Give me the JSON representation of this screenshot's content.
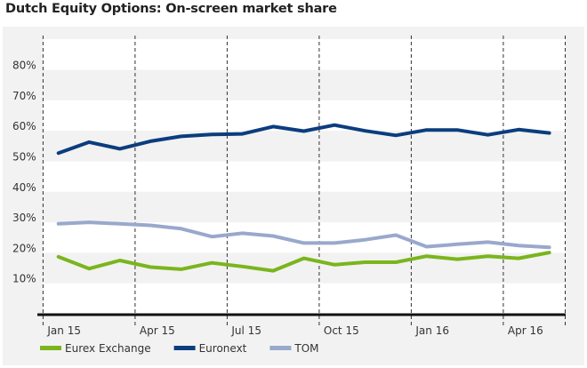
{
  "chart_data": {
    "type": "line",
    "title": "Dutch Equity Options: On-screen market share",
    "xlabel": "",
    "ylabel": "",
    "ylim": [
      0,
      90
    ],
    "yticks": [
      10,
      20,
      30,
      40,
      50,
      60,
      70,
      80
    ],
    "ytick_labels": [
      "10%",
      "20%",
      "30%",
      "40%",
      "50%",
      "60%",
      "70%",
      "80%"
    ],
    "x": [
      "Jan 15",
      "Feb 15",
      "Mar 15",
      "Apr 15",
      "May 15",
      "Jun 15",
      "Jul 15",
      "Aug 15",
      "Sep 15",
      "Oct 15",
      "Nov 15",
      "Dec 15",
      "Jan 16",
      "Feb 16",
      "Mar 16",
      "Apr 16",
      "May 16"
    ],
    "xtick_labels": [
      "Jan 15",
      "Apr 15",
      "Jul 15",
      "Oct 15",
      "Jan 16",
      "Apr 16"
    ],
    "grid": "alternating horizontal bands, dashed vertical quarter lines",
    "legend_position": "bottom-left",
    "series": [
      {
        "name": "Eurex Exchange",
        "color": "#7ab51d",
        "values": [
          18.7,
          14.8,
          17.5,
          15.3,
          14.6,
          16.7,
          15.5,
          14.1,
          18.2,
          16.1,
          16.9,
          16.9,
          18.9,
          17.9,
          18.9,
          18.2,
          20.1
        ]
      },
      {
        "name": "Euronext",
        "color": "#0b3d7e",
        "values": [
          52.7,
          56.3,
          54.1,
          56.6,
          58.2,
          58.8,
          59.0,
          61.4,
          59.9,
          61.9,
          60.0,
          58.5,
          60.3,
          60.3,
          58.7,
          60.4,
          59.3
        ]
      },
      {
        "name": "TOM",
        "color": "#99a8cc",
        "values": [
          29.5,
          30.0,
          29.5,
          29.0,
          27.9,
          25.3,
          26.4,
          25.5,
          23.2,
          23.2,
          24.3,
          25.8,
          22.0,
          22.8,
          23.5,
          22.4,
          21.8
        ]
      }
    ]
  }
}
